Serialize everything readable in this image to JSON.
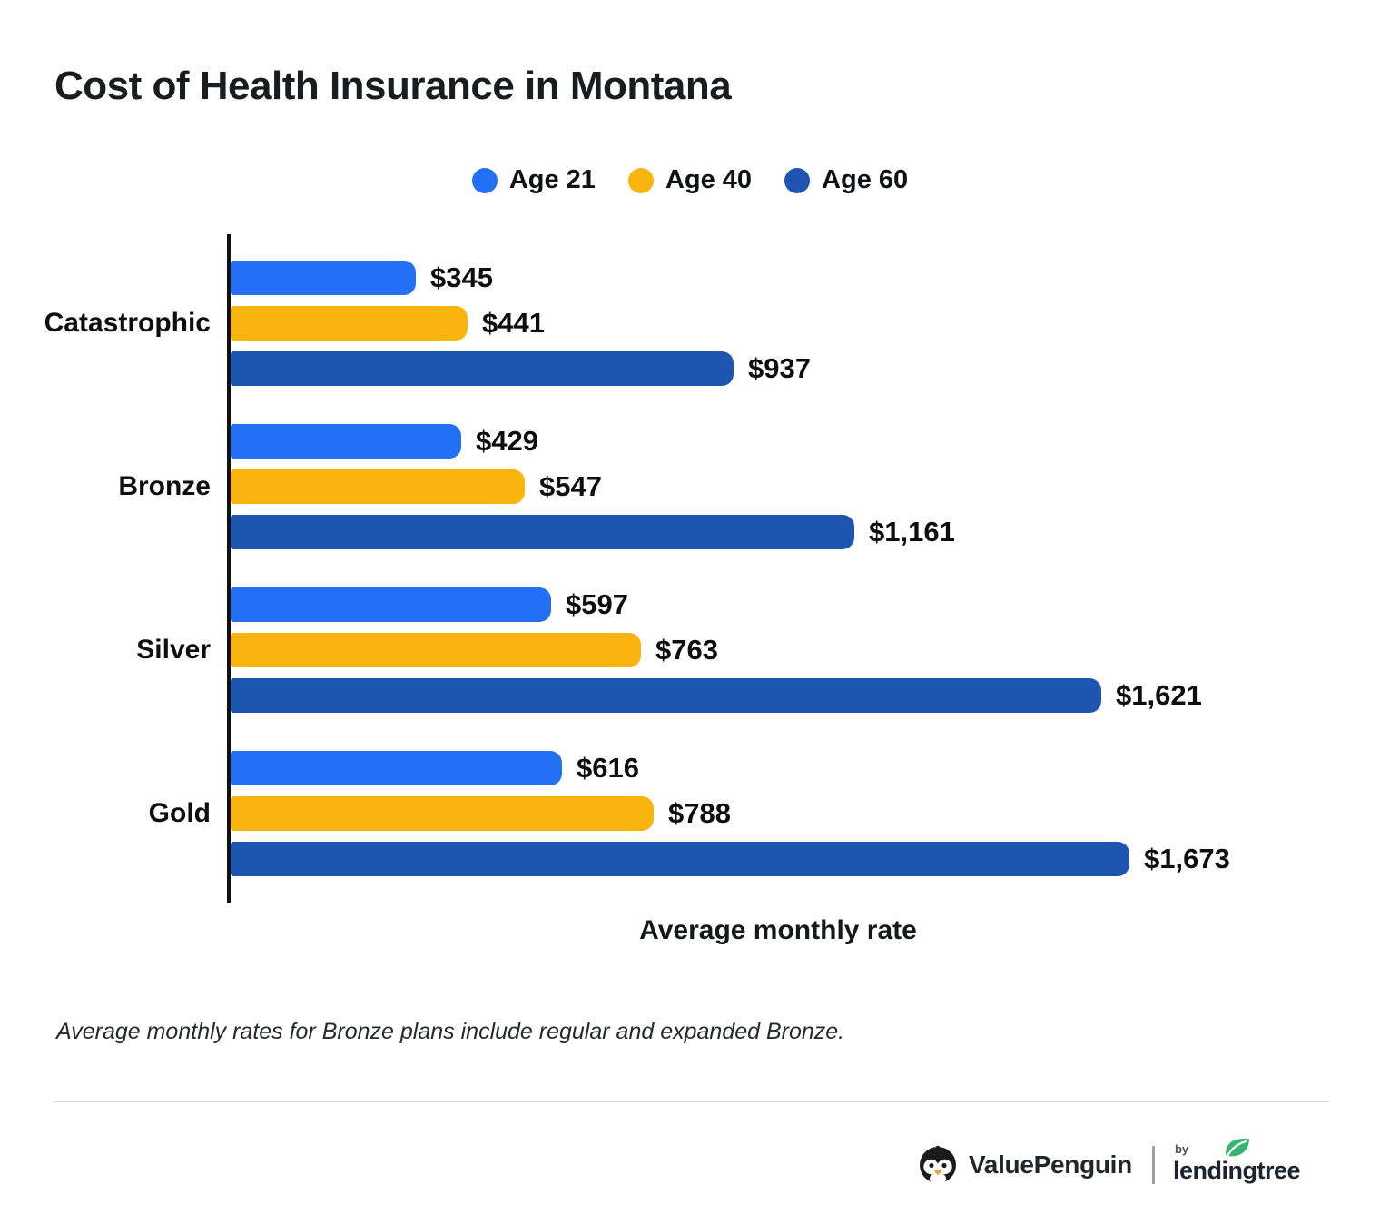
{
  "title": "Cost of Health Insurance in Montana",
  "chart_data": {
    "type": "bar",
    "orientation": "horizontal",
    "title": "Cost of Health Insurance in Montana",
    "categories": [
      "Catastrophic",
      "Bronze",
      "Silver",
      "Gold"
    ],
    "series": [
      {
        "name": "Age 21",
        "color": "#2470F4",
        "values": [
          345,
          429,
          597,
          616
        ],
        "labels": [
          "$345",
          "$429",
          "$597",
          "$616"
        ]
      },
      {
        "name": "Age 40",
        "color": "#F9B40E",
        "values": [
          441,
          547,
          763,
          788
        ],
        "labels": [
          "$441",
          "$547",
          "$763",
          "$788"
        ]
      },
      {
        "name": "Age 60",
        "color": "#1D55B0",
        "values": [
          937,
          1161,
          1621,
          1673
        ],
        "labels": [
          "$937",
          "$1,161",
          "$1,621",
          "$1,673"
        ]
      }
    ],
    "xlabel": "Average monthly rate",
    "ylabel": "",
    "xlim": [
      0,
      1673
    ],
    "grid": false,
    "legend_position": "top",
    "value_labels_shown": true
  },
  "footnote": "Average monthly rates for Bronze plans include regular and expanded Bronze.",
  "footer": {
    "valuepenguin_label": "ValuePenguin",
    "by_label": "by",
    "lendingtree_label": "lendingtree",
    "lendingtree_green": "#35B56F",
    "penguin_beak_color": "#F5A623"
  }
}
